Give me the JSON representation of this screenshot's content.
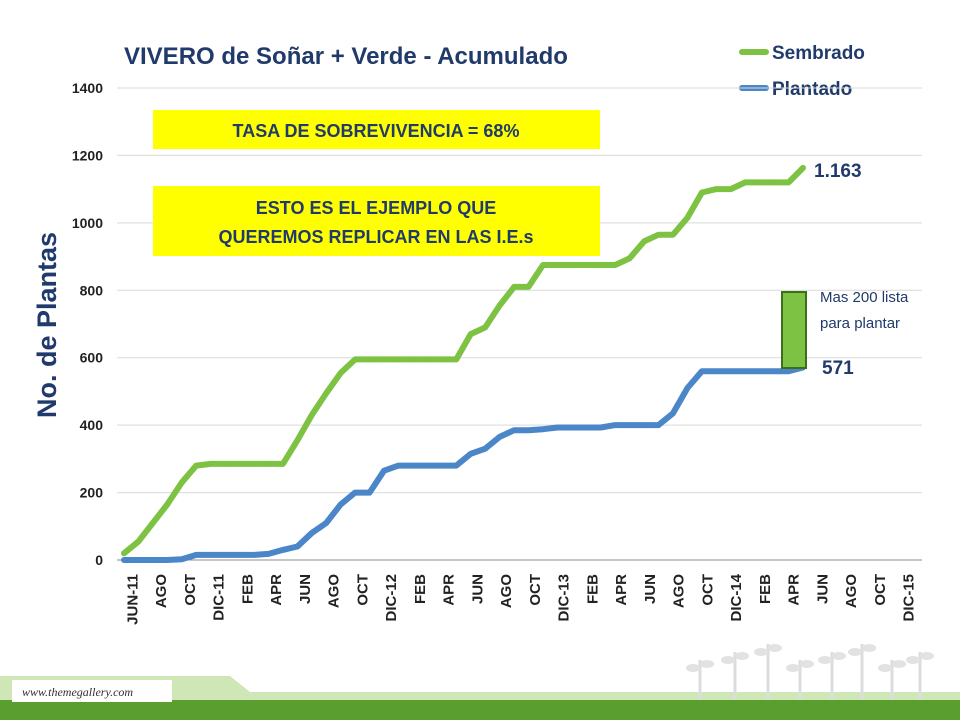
{
  "colors": {
    "sembrado": "#7dc242",
    "plantado": "#4a86c8",
    "callout_box": "#ffff00",
    "footer_green": "#5a9e2f",
    "footer_light": "#cfe7b6"
  },
  "callouts": {
    "tasa": "TASA DE SOBREVIVENCIA = 68%",
    "ejemplo_line1": "ESTO ES EL EJEMPLO QUE",
    "ejemplo_line2": "QUEREMOS REPLICAR EN LAS I.E.s"
  },
  "annotations": {
    "sembrado_end": "1.163",
    "plantado_end": "571",
    "note_line1": "Mas 200 lista",
    "note_line2": "para plantar"
  },
  "footer": {
    "url": "www.themegallery.com"
  },
  "chart_data": {
    "type": "line",
    "title": "VIVERO de Soñar + Verde - Acumulado",
    "ylabel": "No. de  Plantas",
    "xlabel": "",
    "ylim": [
      0,
      1400
    ],
    "yticks": [
      0,
      200,
      400,
      600,
      800,
      1000,
      1200,
      1400
    ],
    "grid": true,
    "legend_position": "top-right",
    "x_tick_labels": [
      "JUN-11",
      "AGO",
      "OCT",
      "DIC-11",
      "FEB",
      "APR",
      "JUN",
      "AGO",
      "OCT",
      "DIC-12",
      "FEB",
      "APR",
      "JUN",
      "AGO",
      "OCT",
      "DIC-13",
      "FEB",
      "APR",
      "JUN",
      "AGO",
      "OCT",
      "DIC-14",
      "FEB",
      "APR",
      "JUN",
      "AGO",
      "OCT",
      "DIC-15"
    ],
    "series": [
      {
        "name": "Sembrado",
        "values": [
          20,
          55,
          110,
          165,
          230,
          280,
          285,
          285,
          285,
          285,
          285,
          285,
          355,
          430,
          495,
          555,
          595,
          595,
          595,
          595,
          595,
          595,
          595,
          595,
          670,
          690,
          755,
          810,
          810,
          875,
          875,
          875,
          875,
          875,
          875,
          895,
          945,
          965,
          965,
          1015,
          1090,
          1100,
          1100,
          1120,
          1120,
          1120,
          1120,
          1163
        ]
      },
      {
        "name": "Plantado",
        "values": [
          0,
          0,
          0,
          0,
          2,
          15,
          15,
          15,
          15,
          15,
          18,
          30,
          40,
          80,
          110,
          165,
          200,
          200,
          265,
          280,
          280,
          280,
          280,
          280,
          315,
          330,
          365,
          385,
          385,
          388,
          393,
          393,
          393,
          393,
          400,
          400,
          400,
          400,
          435,
          510,
          560,
          560,
          560,
          560,
          560,
          560,
          560,
          571
        ]
      }
    ]
  }
}
